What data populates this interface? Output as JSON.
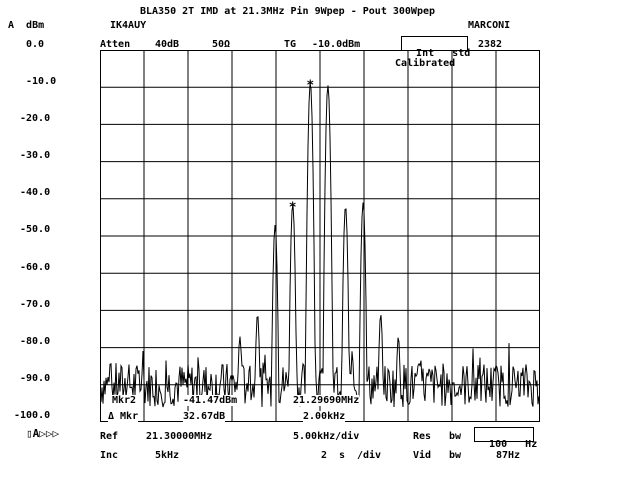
{
  "header": {
    "title": "BLA350 2T IMD at 21.3MHz Pin 9Wpep - Pout 300Wpep",
    "units": "A  dBm",
    "callsign": "IK4AUY",
    "brand": "MARCONI",
    "ref_level": "0.0",
    "atten_label": "Atten",
    "atten_value": "40dB",
    "impedance": "50Ω",
    "tg_label": "TG",
    "tg_value": "-10.0dBm",
    "int_label": "Int",
    "std_label": "std",
    "model": "2382",
    "calibrated": "Calibrated"
  },
  "y_labels": [
    "-10.0",
    "-20.0",
    "-30.0",
    "-40.0",
    "-50.0",
    "-60.0",
    "-70.0",
    "-80.0",
    "-90.0",
    "-100.0"
  ],
  "marker_readout": {
    "mkr_label": "Mkr2",
    "mkr_level": "-41.47dBm",
    "mkr_freq": "21.29690MHz",
    "delta_label": "Δ Mkr",
    "delta_level": "32.67dB",
    "delta_freq": "2.00kHz"
  },
  "footer": {
    "ref_label": "Ref",
    "ref_value": "21.30000MHz",
    "span": "5.00kHz/div",
    "res_label": "Res",
    "res_bw_label": "bw",
    "res_bw_value": "100",
    "res_bw_unit": "Hz",
    "inc_label": "Inc",
    "inc_value": "5kHz",
    "sweep_value": "2",
    "sweep_unit": "s",
    "sweep_div": "/div",
    "vid_label": "Vid",
    "vid_bw_label": "bw",
    "vid_bw_value": "87Hz",
    "corner_icons": "▯A▷▷▷"
  },
  "chart_data": {
    "type": "line",
    "title": "BLA350 2T IMD at 21.3MHz Pin 9Wpep - Pout 300Wpep",
    "center_frequency_mhz": 21.3,
    "span_per_div_khz": 5.0,
    "x_divisions": 10,
    "ylabel": "dBm",
    "ylim": [
      -100,
      0
    ],
    "grid": true,
    "trace_color": "#000000",
    "noise_floor_dbm": -90,
    "peaks": [
      {
        "freq_mhz": 21.2949,
        "level_dbm": -47
      },
      {
        "freq_mhz": 21.2969,
        "level_dbm": -41.47
      },
      {
        "freq_mhz": 21.2989,
        "level_dbm": -8.8
      },
      {
        "freq_mhz": 21.3009,
        "level_dbm": -9.5
      },
      {
        "freq_mhz": 21.3029,
        "level_dbm": -42
      },
      {
        "freq_mhz": 21.3049,
        "level_dbm": -41
      },
      {
        "freq_mhz": 21.2929,
        "level_dbm": -71
      },
      {
        "freq_mhz": 21.3069,
        "level_dbm": -71
      },
      {
        "freq_mhz": 21.2909,
        "level_dbm": -77
      },
      {
        "freq_mhz": 21.3089,
        "level_dbm": -77
      }
    ],
    "markers": [
      {
        "freq_mhz": 21.2989,
        "level_dbm": -8.8
      },
      {
        "freq_mhz": 21.2969,
        "level_dbm": -41.47
      }
    ]
  }
}
